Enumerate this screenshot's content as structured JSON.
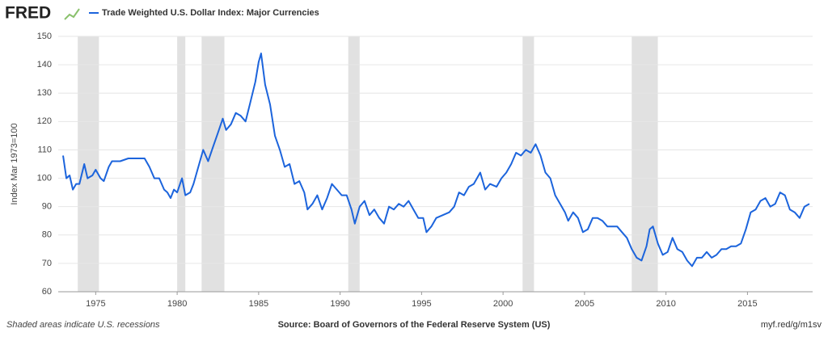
{
  "logo": "FRED",
  "chart_data": {
    "type": "line",
    "ylabel": "Index Mar 1973=100",
    "note": "Shaded areas indicate U.S. recessions",
    "source": "Source: Board of Governors of the Federal Reserve System (US)",
    "link": "myf.red/g/m1sv",
    "xlim": [
      1972.7,
      2019.0
    ],
    "xticks": [
      1975,
      1980,
      1985,
      1990,
      1995,
      2000,
      2005,
      2010,
      2015
    ],
    "ylim": [
      60,
      150
    ],
    "yticks": [
      60,
      70,
      80,
      90,
      100,
      110,
      120,
      130,
      140,
      150
    ],
    "grid": true,
    "recession_color": "#e1e1e1",
    "recessions": [
      [
        1973.9,
        1975.2
      ],
      [
        1980.0,
        1980.5
      ],
      [
        1981.5,
        1982.9
      ],
      [
        1990.5,
        1991.2
      ],
      [
        2001.2,
        2001.9
      ],
      [
        2007.9,
        2009.5
      ]
    ],
    "x": [
      1973.0,
      1973.2,
      1973.4,
      1973.6,
      1973.8,
      1974.0,
      1974.3,
      1974.5,
      1974.8,
      1975.0,
      1975.3,
      1975.5,
      1975.8,
      1976.0,
      1976.5,
      1977.0,
      1977.5,
      1978.0,
      1978.3,
      1978.6,
      1978.9,
      1979.2,
      1979.4,
      1979.6,
      1979.8,
      1980.0,
      1980.3,
      1980.5,
      1980.8,
      1981.0,
      1981.3,
      1981.6,
      1981.9,
      1982.2,
      1982.5,
      1982.8,
      1983.0,
      1983.3,
      1983.6,
      1983.9,
      1984.2,
      1984.5,
      1984.8,
      1985.0,
      1985.15,
      1985.4,
      1985.7,
      1986.0,
      1986.3,
      1986.6,
      1986.9,
      1987.2,
      1987.5,
      1987.8,
      1988.0,
      1988.3,
      1988.6,
      1988.9,
      1989.2,
      1989.5,
      1989.8,
      1990.1,
      1990.4,
      1990.7,
      1990.9,
      1991.2,
      1991.5,
      1991.8,
      1992.1,
      1992.4,
      1992.7,
      1993.0,
      1993.3,
      1993.6,
      1993.9,
      1994.2,
      1994.5,
      1994.8,
      1995.1,
      1995.3,
      1995.6,
      1995.9,
      1996.3,
      1996.7,
      1997.0,
      1997.3,
      1997.6,
      1997.9,
      1998.2,
      1998.6,
      1998.9,
      1999.2,
      1999.6,
      1999.9,
      2000.2,
      2000.5,
      2000.8,
      2001.1,
      2001.4,
      2001.7,
      2002.0,
      2002.3,
      2002.6,
      2002.9,
      2003.2,
      2003.5,
      2003.8,
      2004.0,
      2004.3,
      2004.6,
      2004.9,
      2005.2,
      2005.5,
      2005.8,
      2006.1,
      2006.4,
      2006.7,
      2007.0,
      2007.3,
      2007.6,
      2007.9,
      2008.2,
      2008.5,
      2008.8,
      2009.0,
      2009.2,
      2009.5,
      2009.8,
      2010.1,
      2010.4,
      2010.7,
      2011.0,
      2011.3,
      2011.6,
      2011.9,
      2012.2,
      2012.5,
      2012.8,
      2013.1,
      2013.4,
      2013.7,
      2014.0,
      2014.3,
      2014.6,
      2014.9,
      2015.2,
      2015.5,
      2015.8,
      2016.1,
      2016.4,
      2016.7,
      2017.0,
      2017.3,
      2017.6,
      2017.9,
      2018.2,
      2018.5,
      2018.8
    ],
    "series": [
      {
        "name": "Trade Weighted U.S. Dollar Index: Major Currencies",
        "color": "#1c64dc",
        "values": [
          108,
          100,
          101,
          96,
          98,
          98,
          105,
          100,
          101,
          103,
          100,
          99,
          104,
          106,
          106,
          107,
          107,
          107,
          104,
          100,
          100,
          96,
          95,
          93,
          96,
          95,
          100,
          94,
          95,
          98,
          104,
          110,
          106,
          111,
          116,
          121,
          117,
          119,
          123,
          122,
          120,
          127,
          134,
          141,
          144,
          133,
          126,
          115,
          110,
          104,
          105,
          98,
          99,
          95,
          89,
          91,
          94,
          89,
          93,
          98,
          96,
          94,
          94,
          89,
          84,
          90,
          92,
          87,
          89,
          86,
          84,
          90,
          89,
          91,
          90,
          92,
          89,
          86,
          86,
          81,
          83,
          86,
          87,
          88,
          90,
          95,
          94,
          97,
          98,
          102,
          96,
          98,
          97,
          100,
          102,
          105,
          109,
          108,
          110,
          109,
          112,
          108,
          102,
          100,
          94,
          91,
          88,
          85,
          88,
          86,
          81,
          82,
          86,
          86,
          85,
          83,
          83,
          83,
          81,
          79,
          75,
          72,
          71,
          76,
          82,
          83,
          77,
          73,
          74,
          79,
          75,
          74,
          71,
          69,
          72,
          72,
          74,
          72,
          73,
          75,
          75,
          76,
          76,
          77,
          82,
          88,
          89,
          92,
          93,
          90,
          91,
          95,
          94,
          89,
          88,
          86,
          90,
          91
        ]
      }
    ]
  }
}
